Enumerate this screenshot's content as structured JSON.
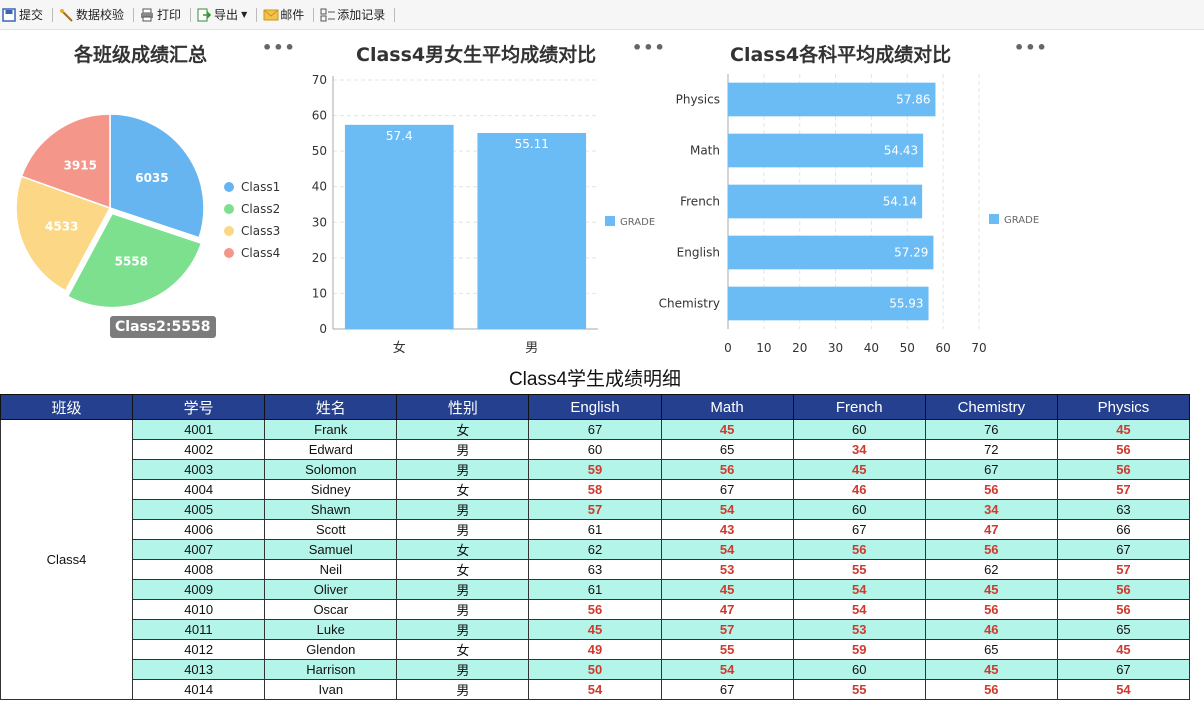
{
  "toolbar": {
    "submit": "提交",
    "validate": "数据校验",
    "print": "打印",
    "export": "导出",
    "mail": "邮件",
    "add_record": "添加记录"
  },
  "colors": {
    "class1": "#67b5f0",
    "class2": "#7de08e",
    "class3": "#fbd786",
    "class4": "#f5968a",
    "bar": "#6bbcf5",
    "header": "#24408e",
    "row_alt": "#b3f5e8",
    "low": "#d03a2e"
  },
  "menu_icon": "more-dots-icon",
  "chart_data": [
    {
      "type": "pie",
      "title": "各班级成绩汇总",
      "categories": [
        "Class1",
        "Class2",
        "Class3",
        "Class4"
      ],
      "values": [
        6035,
        5558,
        4533,
        3915
      ],
      "legend": "right",
      "tooltip": "Class2:5558"
    },
    {
      "type": "bar",
      "title": "Class4男女生平均成绩对比",
      "categories": [
        "女",
        "男"
      ],
      "series": [
        {
          "name": "GRADE",
          "values": [
            57.4,
            55.11
          ]
        }
      ],
      "value_labels": [
        "57.4",
        "55.11"
      ],
      "ylim": [
        0,
        70
      ],
      "yticks": [
        0,
        10,
        20,
        30,
        40,
        50,
        60,
        70
      ],
      "grid": true,
      "legend": "right"
    },
    {
      "type": "bar",
      "orientation": "horizontal",
      "title": "Class4各科平均成绩对比",
      "categories": [
        "Physics",
        "Math",
        "French",
        "English",
        "Chemistry"
      ],
      "series": [
        {
          "name": "GRADE",
          "values": [
            57.86,
            54.43,
            54.14,
            57.29,
            55.93
          ]
        }
      ],
      "value_labels": [
        "57.86",
        "54.43",
        "54.14",
        "57.29",
        "55.93"
      ],
      "xlim": [
        0,
        70
      ],
      "xticks": [
        0,
        10,
        20,
        30,
        40,
        50,
        60,
        70
      ],
      "grid": true,
      "legend": "right"
    }
  ],
  "table": {
    "title": "Class4学生成绩明细",
    "headers": [
      "班级",
      "学号",
      "姓名",
      "性别",
      "English",
      "Math",
      "French",
      "Chemistry",
      "Physics"
    ],
    "class_name": "Class4",
    "rows": [
      [
        "4001",
        "Frank",
        "女",
        67,
        45,
        60,
        76,
        45
      ],
      [
        "4002",
        "Edward",
        "男",
        60,
        65,
        34,
        72,
        56
      ],
      [
        "4003",
        "Solomon",
        "男",
        59,
        56,
        45,
        67,
        56
      ],
      [
        "4004",
        "Sidney",
        "女",
        58,
        67,
        46,
        56,
        57
      ],
      [
        "4005",
        "Shawn",
        "男",
        57,
        54,
        60,
        34,
        63
      ],
      [
        "4006",
        "Scott",
        "男",
        61,
        43,
        67,
        47,
        66
      ],
      [
        "4007",
        "Samuel",
        "女",
        62,
        54,
        56,
        56,
        67
      ],
      [
        "4008",
        "Neil",
        "女",
        63,
        53,
        55,
        62,
        57
      ],
      [
        "4009",
        "Oliver",
        "男",
        61,
        45,
        54,
        45,
        56
      ],
      [
        "4010",
        "Oscar",
        "男",
        56,
        47,
        54,
        56,
        56
      ],
      [
        "4011",
        "Luke",
        "男",
        45,
        57,
        53,
        46,
        65
      ],
      [
        "4012",
        "Glendon",
        "女",
        49,
        55,
        59,
        65,
        45
      ],
      [
        "4013",
        "Harrison",
        "男",
        50,
        54,
        60,
        45,
        67
      ],
      [
        "4014",
        "Ivan",
        "男",
        54,
        67,
        55,
        56,
        54
      ]
    ],
    "low_threshold": 60
  }
}
